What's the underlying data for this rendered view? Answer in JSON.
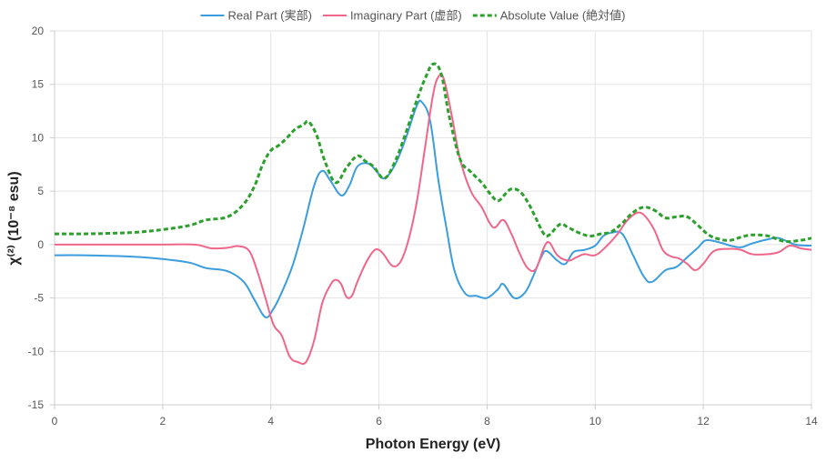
{
  "chart_data": {
    "type": "line",
    "title": "",
    "xlabel": "Photon Energy (eV)",
    "ylabel": "χ⁽²⁾ (10⁻⁸ esu)",
    "xlim": [
      0,
      14
    ],
    "ylim": [
      -15,
      20
    ],
    "xticks": [
      0,
      2,
      4,
      6,
      8,
      10,
      12,
      14
    ],
    "yticks": [
      -15,
      -10,
      -5,
      0,
      5,
      10,
      15,
      20
    ],
    "grid": true,
    "legend_position": "top",
    "series": [
      {
        "name": "Real Part (実部)",
        "color": "#3b9ddd",
        "dash": "solid",
        "points": [
          [
            0,
            -1.0
          ],
          [
            0.5,
            -1.0
          ],
          [
            1.0,
            -1.05
          ],
          [
            1.5,
            -1.15
          ],
          [
            2.0,
            -1.35
          ],
          [
            2.5,
            -1.7
          ],
          [
            2.8,
            -2.2
          ],
          [
            3.2,
            -2.5
          ],
          [
            3.5,
            -3.5
          ],
          [
            3.7,
            -5.2
          ],
          [
            3.9,
            -6.8
          ],
          [
            4.05,
            -6.0
          ],
          [
            4.2,
            -4.5
          ],
          [
            4.4,
            -2.0
          ],
          [
            4.6,
            1.5
          ],
          [
            4.8,
            5.5
          ],
          [
            4.95,
            6.9
          ],
          [
            5.1,
            6.0
          ],
          [
            5.3,
            4.6
          ],
          [
            5.45,
            5.5
          ],
          [
            5.6,
            7.3
          ],
          [
            5.8,
            7.6
          ],
          [
            5.95,
            6.9
          ],
          [
            6.1,
            6.2
          ],
          [
            6.3,
            7.5
          ],
          [
            6.5,
            10.0
          ],
          [
            6.7,
            13.0
          ],
          [
            6.8,
            13.3
          ],
          [
            6.95,
            11.5
          ],
          [
            7.1,
            6.0
          ],
          [
            7.25,
            1.5
          ],
          [
            7.4,
            -2.5
          ],
          [
            7.6,
            -4.6
          ],
          [
            7.8,
            -4.8
          ],
          [
            8.0,
            -5.0
          ],
          [
            8.2,
            -4.2
          ],
          [
            8.3,
            -3.7
          ],
          [
            8.5,
            -5.0
          ],
          [
            8.7,
            -4.5
          ],
          [
            8.85,
            -3.0
          ],
          [
            9.0,
            -1.2
          ],
          [
            9.1,
            -0.6
          ],
          [
            9.3,
            -1.5
          ],
          [
            9.45,
            -1.8
          ],
          [
            9.6,
            -0.7
          ],
          [
            9.8,
            -0.5
          ],
          [
            10.0,
            -0.1
          ],
          [
            10.15,
            0.8
          ],
          [
            10.3,
            1.1
          ],
          [
            10.5,
            1.0
          ],
          [
            10.7,
            -1.0
          ],
          [
            10.9,
            -3.0
          ],
          [
            11.05,
            -3.5
          ],
          [
            11.3,
            -2.4
          ],
          [
            11.5,
            -2.1
          ],
          [
            11.7,
            -1.2
          ],
          [
            11.9,
            -0.3
          ],
          [
            12.05,
            0.4
          ],
          [
            12.3,
            0.2
          ],
          [
            12.5,
            -0.1
          ],
          [
            12.7,
            -0.25
          ],
          [
            12.9,
            0.1
          ],
          [
            13.2,
            0.5
          ],
          [
            13.4,
            0.6
          ],
          [
            13.7,
            0.0
          ],
          [
            14.0,
            -0.1
          ]
        ]
      },
      {
        "name": "Imaginary Part (虚部)",
        "color": "#f0668a",
        "dash": "solid",
        "points": [
          [
            0,
            0.0
          ],
          [
            1.0,
            0.0
          ],
          [
            2.0,
            0.0
          ],
          [
            2.6,
            0.0
          ],
          [
            2.9,
            -0.35
          ],
          [
            3.2,
            -0.3
          ],
          [
            3.4,
            -0.15
          ],
          [
            3.6,
            -0.6
          ],
          [
            3.75,
            -2.5
          ],
          [
            3.9,
            -5.0
          ],
          [
            4.05,
            -7.5
          ],
          [
            4.2,
            -8.5
          ],
          [
            4.35,
            -10.5
          ],
          [
            4.5,
            -11.0
          ],
          [
            4.65,
            -11.0
          ],
          [
            4.8,
            -9.0
          ],
          [
            4.95,
            -5.5
          ],
          [
            5.1,
            -3.8
          ],
          [
            5.2,
            -3.3
          ],
          [
            5.3,
            -3.7
          ],
          [
            5.4,
            -4.9
          ],
          [
            5.5,
            -4.8
          ],
          [
            5.6,
            -3.5
          ],
          [
            5.75,
            -1.8
          ],
          [
            5.9,
            -0.6
          ],
          [
            6.0,
            -0.5
          ],
          [
            6.1,
            -1.0
          ],
          [
            6.25,
            -2.0
          ],
          [
            6.4,
            -1.6
          ],
          [
            6.55,
            0.5
          ],
          [
            6.7,
            4.0
          ],
          [
            6.85,
            9.0
          ],
          [
            7.0,
            14.0
          ],
          [
            7.1,
            15.7
          ],
          [
            7.2,
            15.5
          ],
          [
            7.35,
            12.0
          ],
          [
            7.5,
            8.0
          ],
          [
            7.7,
            5.0
          ],
          [
            7.9,
            3.5
          ],
          [
            8.05,
            2.0
          ],
          [
            8.15,
            1.6
          ],
          [
            8.3,
            2.3
          ],
          [
            8.45,
            1.0
          ],
          [
            8.6,
            -0.8
          ],
          [
            8.75,
            -2.2
          ],
          [
            8.9,
            -2.3
          ],
          [
            9.05,
            -0.3
          ],
          [
            9.15,
            0.2
          ],
          [
            9.3,
            -1.0
          ],
          [
            9.5,
            -1.5
          ],
          [
            9.65,
            -1.2
          ],
          [
            9.8,
            -0.9
          ],
          [
            10.0,
            -1.0
          ],
          [
            10.2,
            -0.2
          ],
          [
            10.4,
            0.9
          ],
          [
            10.6,
            2.3
          ],
          [
            10.8,
            3.0
          ],
          [
            10.95,
            2.5
          ],
          [
            11.1,
            1.3
          ],
          [
            11.25,
            -0.5
          ],
          [
            11.4,
            -1.1
          ],
          [
            11.55,
            -1.3
          ],
          [
            11.7,
            -1.8
          ],
          [
            11.85,
            -2.4
          ],
          [
            12.0,
            -1.8
          ],
          [
            12.2,
            -0.6
          ],
          [
            12.5,
            -0.4
          ],
          [
            12.7,
            -0.5
          ],
          [
            12.9,
            -0.9
          ],
          [
            13.2,
            -0.9
          ],
          [
            13.4,
            -0.7
          ],
          [
            13.6,
            -0.1
          ],
          [
            13.8,
            -0.35
          ],
          [
            14.0,
            -0.5
          ]
        ]
      },
      {
        "name": "Absolute Value (絶対値)",
        "color": "#2ca02c",
        "dash": "dashed",
        "points": [
          [
            0,
            1.0
          ],
          [
            0.5,
            1.0
          ],
          [
            1.0,
            1.05
          ],
          [
            1.5,
            1.15
          ],
          [
            2.0,
            1.4
          ],
          [
            2.5,
            1.8
          ],
          [
            2.8,
            2.3
          ],
          [
            3.2,
            2.6
          ],
          [
            3.5,
            3.8
          ],
          [
            3.7,
            5.5
          ],
          [
            3.85,
            7.5
          ],
          [
            4.0,
            8.8
          ],
          [
            4.15,
            9.3
          ],
          [
            4.3,
            10.0
          ],
          [
            4.45,
            10.8
          ],
          [
            4.6,
            11.2
          ],
          [
            4.7,
            11.5
          ],
          [
            4.85,
            10.2
          ],
          [
            5.0,
            7.8
          ],
          [
            5.2,
            5.8
          ],
          [
            5.4,
            7.2
          ],
          [
            5.6,
            8.3
          ],
          [
            5.75,
            7.8
          ],
          [
            5.9,
            7.3
          ],
          [
            6.1,
            6.2
          ],
          [
            6.3,
            7.8
          ],
          [
            6.5,
            10.5
          ],
          [
            6.7,
            13.5
          ],
          [
            6.85,
            15.5
          ],
          [
            7.0,
            16.9
          ],
          [
            7.15,
            16.0
          ],
          [
            7.3,
            12.0
          ],
          [
            7.5,
            8.0
          ],
          [
            7.7,
            6.8
          ],
          [
            7.9,
            5.8
          ],
          [
            8.05,
            4.8
          ],
          [
            8.2,
            4.1
          ],
          [
            8.35,
            4.8
          ],
          [
            8.45,
            5.2
          ],
          [
            8.6,
            5.0
          ],
          [
            8.75,
            4.0
          ],
          [
            8.9,
            2.5
          ],
          [
            9.05,
            1.0
          ],
          [
            9.15,
            0.9
          ],
          [
            9.35,
            1.9
          ],
          [
            9.5,
            1.6
          ],
          [
            9.7,
            1.1
          ],
          [
            9.9,
            0.8
          ],
          [
            10.1,
            1.0
          ],
          [
            10.3,
            1.2
          ],
          [
            10.5,
            2.0
          ],
          [
            10.7,
            3.0
          ],
          [
            10.9,
            3.5
          ],
          [
            11.1,
            3.2
          ],
          [
            11.3,
            2.5
          ],
          [
            11.5,
            2.6
          ],
          [
            11.7,
            2.6
          ],
          [
            11.9,
            1.8
          ],
          [
            12.1,
            0.9
          ],
          [
            12.3,
            0.5
          ],
          [
            12.5,
            0.4
          ],
          [
            12.7,
            0.7
          ],
          [
            12.9,
            0.9
          ],
          [
            13.2,
            0.8
          ],
          [
            13.5,
            0.3
          ],
          [
            13.8,
            0.4
          ],
          [
            14.0,
            0.6
          ]
        ]
      }
    ]
  }
}
